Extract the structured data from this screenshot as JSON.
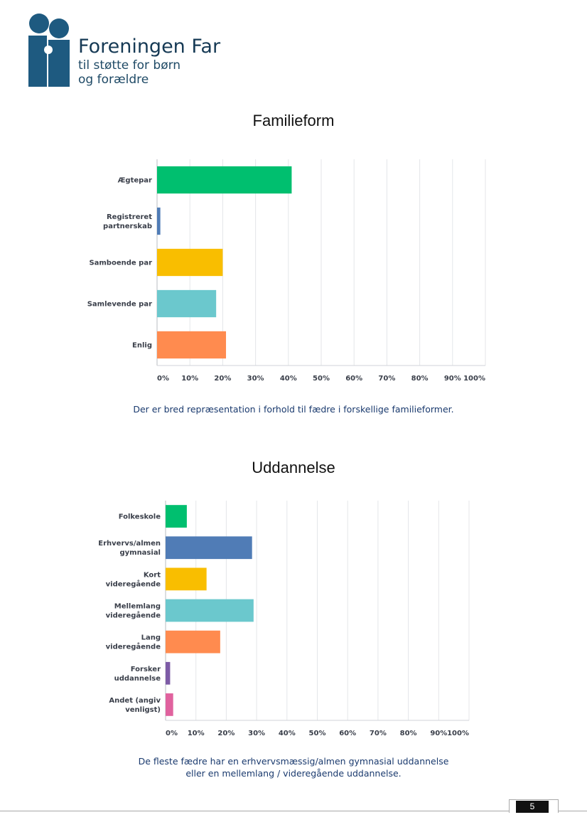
{
  "logo": {
    "title": "Foreningen Far",
    "subtitle_line1": "til støtte for børn",
    "subtitle_line2": "og forældre",
    "color": "#1e5a80"
  },
  "chart_data": [
    {
      "type": "bar",
      "orientation": "horizontal",
      "title": "Familieform",
      "categories": [
        "Ægtepar",
        "Registreret\npartnerskab",
        "Samboende par",
        "Samlevende par",
        "Enlig"
      ],
      "values": [
        41,
        1,
        20,
        18,
        21
      ],
      "colors": [
        "#00bf6f",
        "#507cb6",
        "#f9be00",
        "#6bc8cd",
        "#ff8b4f"
      ],
      "xlim": [
        0,
        100
      ],
      "ticks": [
        "0%",
        "10%",
        "20%",
        "30%",
        "40%",
        "50%",
        "60%",
        "70%",
        "80%",
        "90%",
        "100%"
      ],
      "grid": true,
      "caption": "Der er bred repræsentation i forhold til fædre i forskellige familieformer."
    },
    {
      "type": "bar",
      "orientation": "horizontal",
      "title": "Uddannelse",
      "categories": [
        "Folkeskole",
        "Erhvervs/almen\ngymnasial",
        "Kort\nvideregående",
        "Mellemlang\nvideregående",
        "Lang\nvideregående",
        "Forsker\nuddannelse",
        "Andet (angiv\nvenligst)"
      ],
      "values": [
        7,
        28.5,
        13.5,
        29,
        18,
        1.5,
        2.5
      ],
      "colors": [
        "#00bf6f",
        "#507cb6",
        "#f9be00",
        "#6bc8cd",
        "#ff8b4f",
        "#7d5ba6",
        "#e0629e"
      ],
      "xlim": [
        0,
        100
      ],
      "ticks": [
        "0%",
        "10%",
        "20%",
        "30%",
        "40%",
        "50%",
        "60%",
        "70%",
        "80%",
        "90%",
        "100%"
      ],
      "grid": true,
      "caption_line1": "De fleste fædre har en erhvervsmæssig/almen gymnasial uddannelse",
      "caption_line2": "eller en mellemlang / videregående uddannelse."
    }
  ],
  "footer": {
    "page_number": "5"
  }
}
